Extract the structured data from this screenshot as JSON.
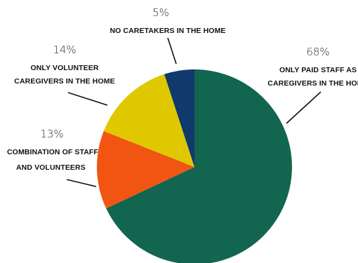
{
  "chart_data": {
    "type": "pie",
    "start_angle_deg": 0,
    "direction": "clockwise",
    "slices": [
      {
        "percent_label": "68%",
        "value": 68,
        "label_lines": [
          "ONLY PAID STAFF AS",
          "CAREGIVERS IN THE HOME"
        ],
        "color": "#126650"
      },
      {
        "percent_label": "13%",
        "value": 13,
        "label_lines": [
          "COMBINATION OF STAFF",
          "AND VOLUNTEERS"
        ],
        "color": "#f25512"
      },
      {
        "percent_label": "14%",
        "value": 14,
        "label_lines": [
          "ONLY VOLUNTEER",
          "CAREGIVERS IN THE HOME"
        ],
        "color": "#e0c800"
      },
      {
        "percent_label": "5%",
        "value": 5,
        "label_lines": [
          "NO CARETAKERS IN THE HOME"
        ],
        "color": "#0f3a6b"
      }
    ]
  }
}
